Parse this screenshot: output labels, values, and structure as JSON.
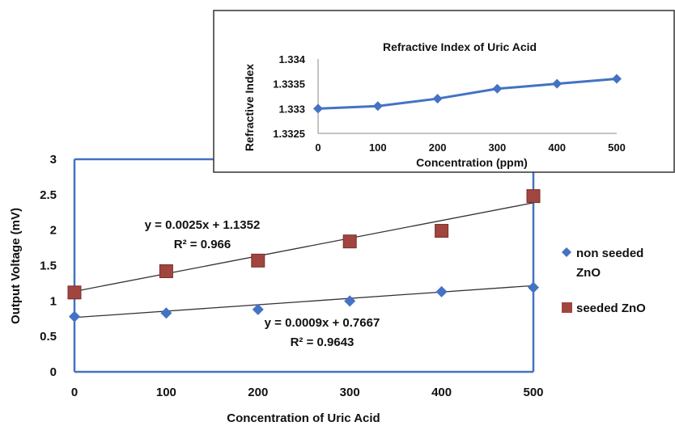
{
  "chart_data": [
    {
      "type": "scatter",
      "xlabel": "Concentration of Uric Acid",
      "ylabel": "Output Voltage (mV)",
      "xlim": [
        0,
        500
      ],
      "ylim": [
        0,
        3
      ],
      "xticks": [
        0,
        100,
        200,
        300,
        400,
        500
      ],
      "yticks": [
        0,
        0.5,
        1,
        1.5,
        2,
        2.5,
        3
      ],
      "legend_position": "right",
      "series": [
        {
          "name": "non seeded ZnO",
          "marker": "diamond",
          "color": "#4472C4",
          "x": [
            0,
            100,
            200,
            300,
            400,
            500
          ],
          "y": [
            0.78,
            0.83,
            0.88,
            1.0,
            1.13,
            1.19
          ]
        },
        {
          "name": "seeded ZnO",
          "marker": "square",
          "color": "#C0504D",
          "x": [
            0,
            100,
            200,
            300,
            400,
            500
          ],
          "y": [
            1.12,
            1.42,
            1.57,
            1.84,
            1.99,
            2.48
          ]
        }
      ],
      "trendlines": [
        {
          "series": "seeded ZnO",
          "slope": 0.0025,
          "intercept": 1.1352,
          "equation": "y = 0.0025x + 1.1352",
          "r2": "R² = 0.966"
        },
        {
          "series": "non seeded ZnO",
          "slope": 0.0009,
          "intercept": 0.7667,
          "equation": "y = 0.0009x + 0.7667",
          "r2": "R² = 0.9643"
        }
      ]
    },
    {
      "type": "line",
      "title": "Refractive Index of Uric Acid",
      "xlabel": "Concentration (ppm)",
      "ylabel": "Refractive Index",
      "xlim": [
        0,
        500
      ],
      "ylim": [
        1.3325,
        1.334
      ],
      "xticks": [
        0,
        100,
        200,
        300,
        400,
        500
      ],
      "yticks": [
        "1.3325",
        "1.333",
        "1.3335",
        "1.334"
      ],
      "series": [
        {
          "marker": "diamond",
          "color": "#4472C4",
          "x": [
            0,
            100,
            200,
            300,
            400,
            500
          ],
          "y": [
            1.333,
            1.33305,
            1.3332,
            1.3334,
            1.3335,
            1.3336
          ]
        }
      ]
    }
  ]
}
